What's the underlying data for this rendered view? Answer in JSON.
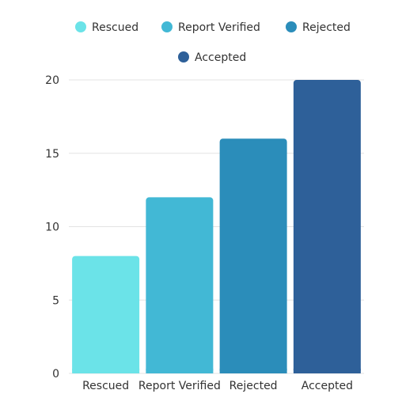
{
  "chart_data": {
    "type": "bar",
    "categories": [
      "Rescued",
      "Report Verified",
      "Rejected",
      "Accepted"
    ],
    "values": [
      8,
      12,
      16,
      20
    ],
    "colors": [
      "#6BE3E8",
      "#42B8D5",
      "#2B8DBA",
      "#2E6099"
    ],
    "legend": [
      "Rescued",
      "Report Verified",
      "Rejected",
      "Accepted"
    ],
    "legend_position": "top",
    "yticks": [
      0,
      5,
      10,
      15,
      20
    ],
    "ylim": [
      0,
      20
    ],
    "grid": true,
    "title": "",
    "xlabel": "",
    "ylabel": ""
  }
}
